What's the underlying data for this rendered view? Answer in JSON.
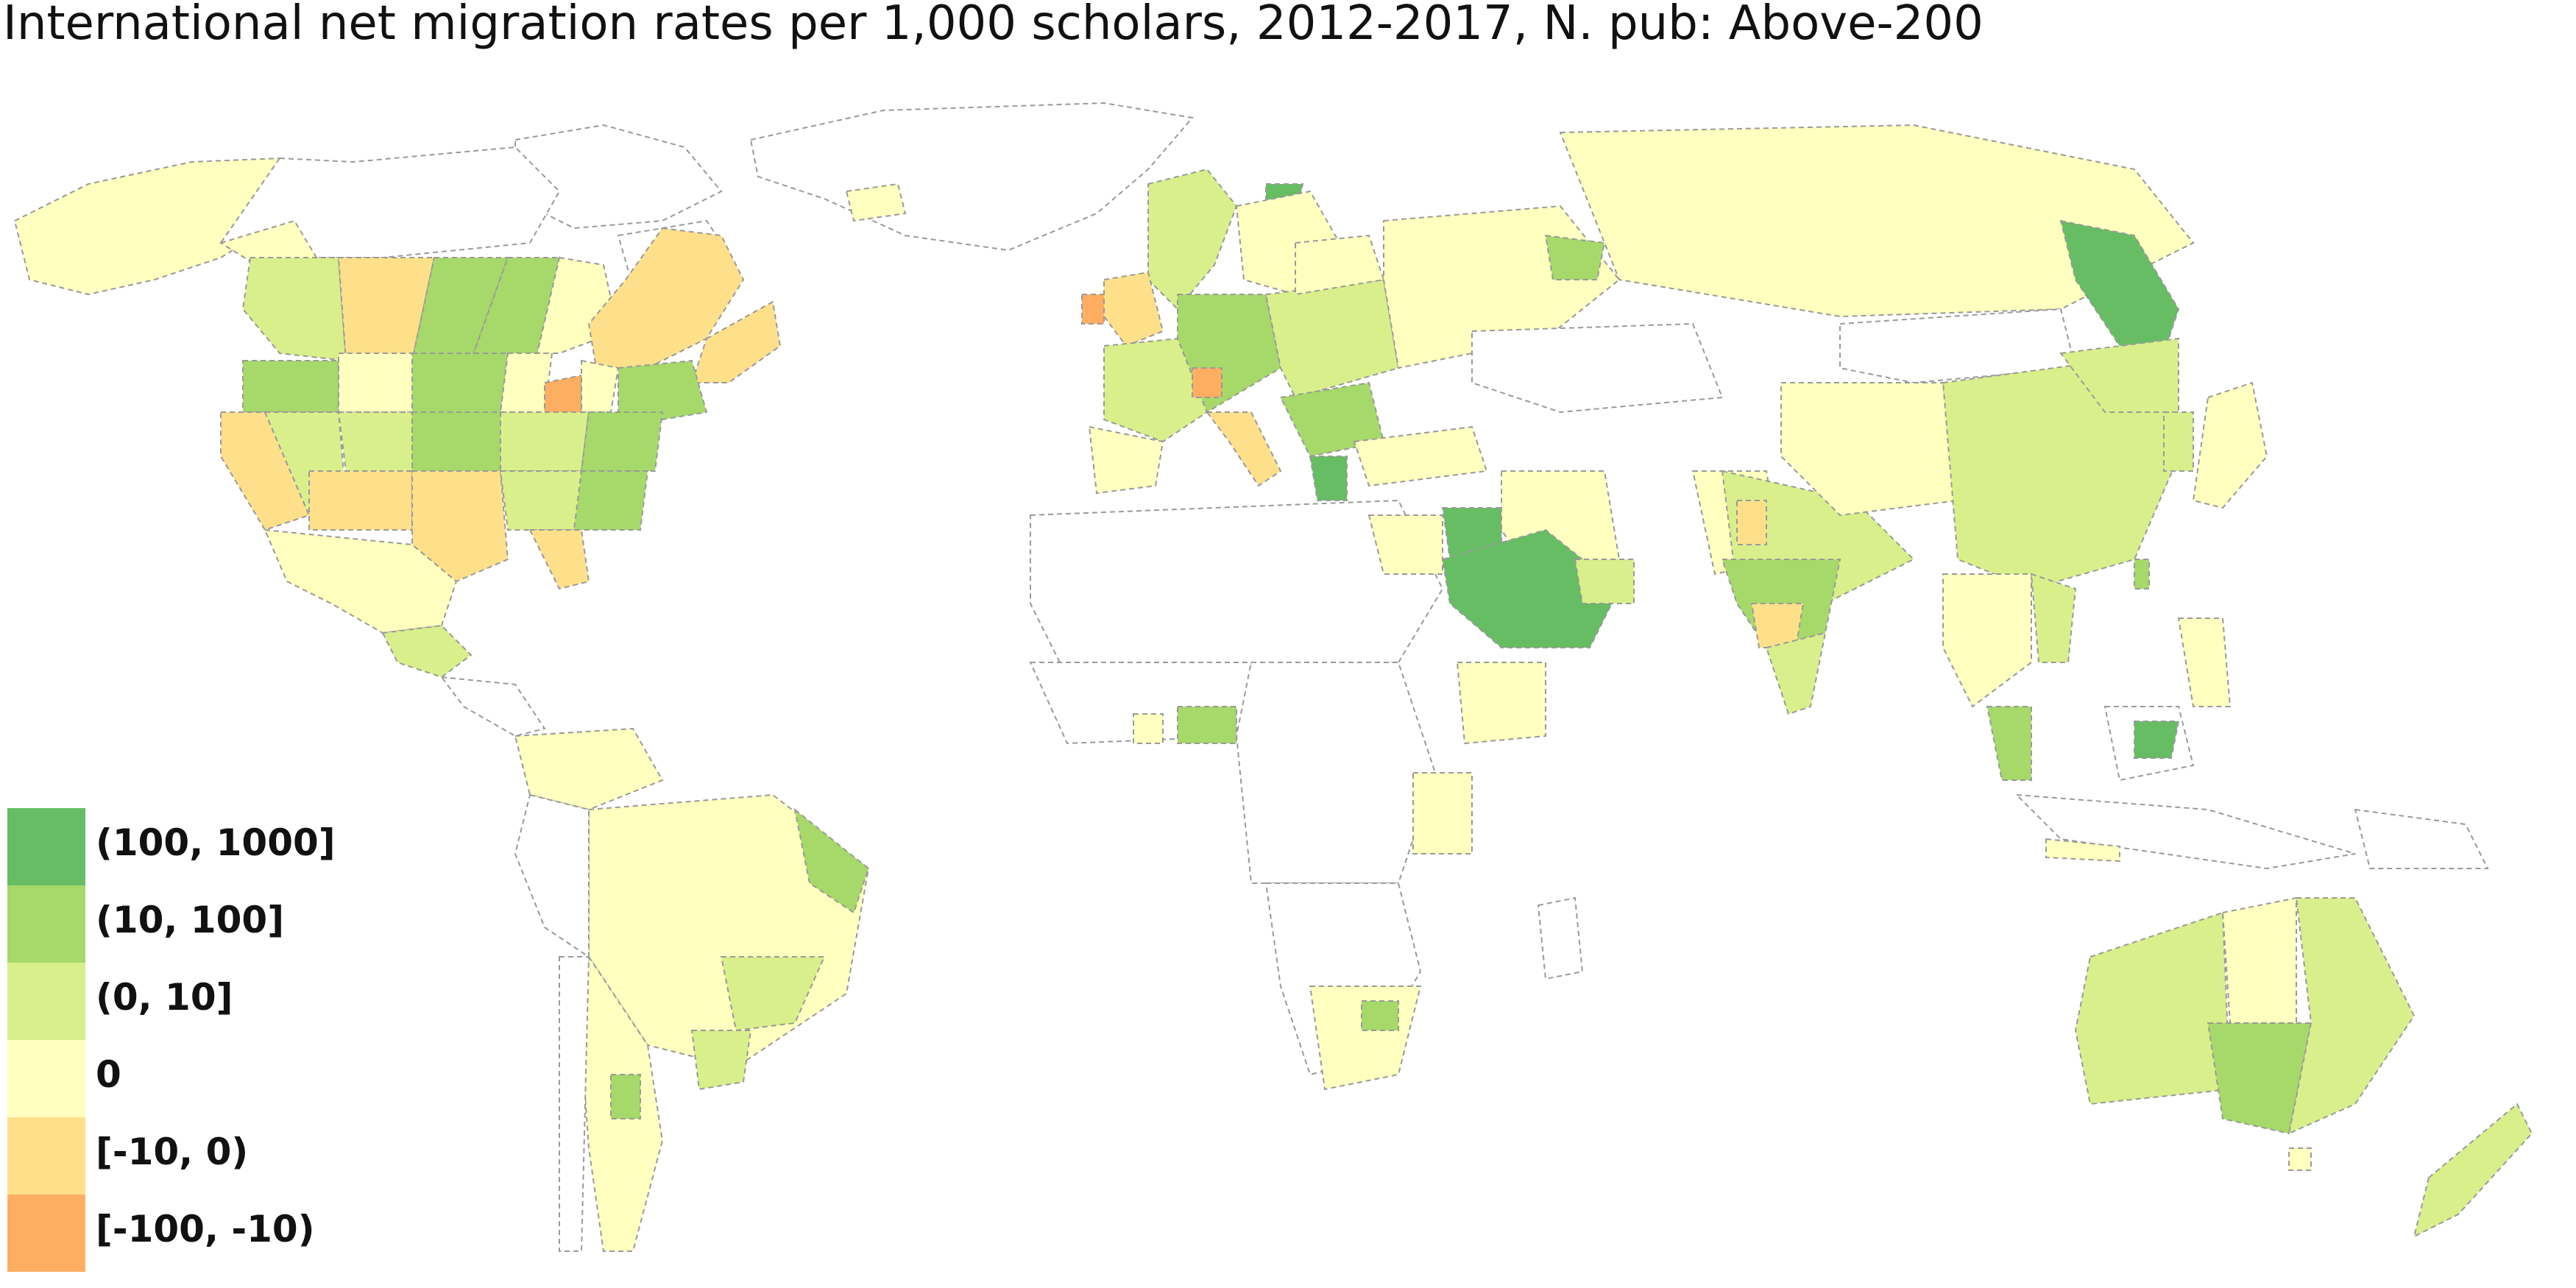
{
  "title": "International net migration rates per 1,000 scholars, 2012-2017, N. pub: Above-200",
  "legend": {
    "items": [
      {
        "label": "(100, 1000]",
        "color": "#66bd63"
      },
      {
        "label": "(10, 100]",
        "color": "#a6d96a"
      },
      {
        "label": "(0, 10]",
        "color": "#d9ef8b"
      },
      {
        "label": "0",
        "color": "#ffffbf"
      },
      {
        "label": "[-10, 0)",
        "color": "#fee08b"
      },
      {
        "label": "[-100, -10)",
        "color": "#fdae61"
      }
    ]
  },
  "colors": {
    "no_data": "#ffffff",
    "border": "#9a9a9a"
  }
}
